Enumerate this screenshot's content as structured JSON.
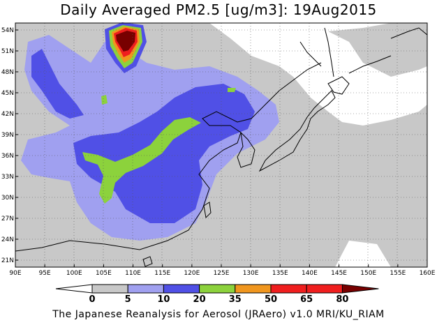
{
  "title": "Daily Averaged PM2.5 [ug/m3]: 19Aug2015",
  "footer": "The Japanese Reanalysis for Aerosol (JRAero) v1.0 MRI/KU_RIAM",
  "map": {
    "lon_range": [
      90,
      160
    ],
    "lat_range": [
      20,
      55
    ],
    "lon_ticks": [
      "90E",
      "95E",
      "100E",
      "105E",
      "110E",
      "115E",
      "120E",
      "125E",
      "130E",
      "135E",
      "140E",
      "145E",
      "150E",
      "155E",
      "160E"
    ],
    "lat_ticks": [
      "54N",
      "51N",
      "48N",
      "45N",
      "42N",
      "39N",
      "36N",
      "33N",
      "30N",
      "27N",
      "24N",
      "21N"
    ],
    "grid": true
  },
  "colorbar": {
    "labels": [
      "0",
      "5",
      "10",
      "20",
      "35",
      "50",
      "65",
      "80"
    ],
    "colors": [
      "#ffffff",
      "#c8c8c8",
      "#a0a0f0",
      "#5050e6",
      "#8cd23c",
      "#f0961e",
      "#f01e1e",
      "#780000"
    ]
  }
}
